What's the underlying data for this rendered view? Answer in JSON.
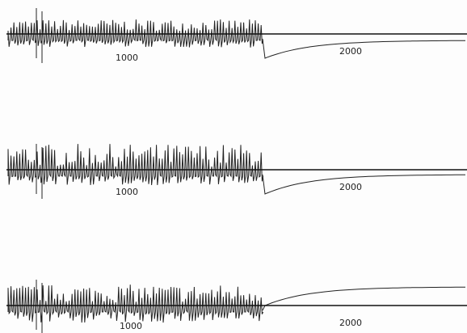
{
  "traces": [
    {
      "marker_1": "1000",
      "marker_2": "2000"
    },
    {
      "marker_1": "1000",
      "marker_2": "2000"
    },
    {
      "marker_1": "1000",
      "marker_2": "2000"
    }
  ]
}
